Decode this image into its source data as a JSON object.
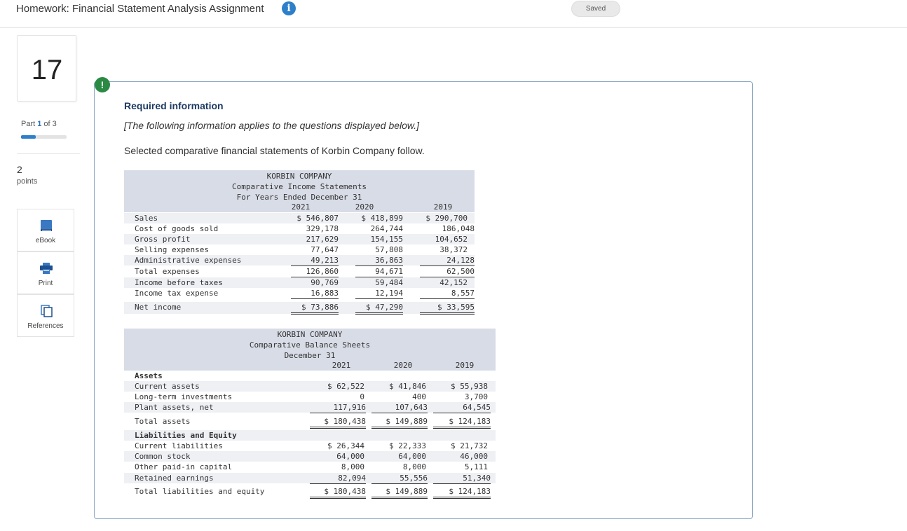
{
  "header": {
    "title": "Homework: Financial Statement Analysis Assignment",
    "info_icon": "i",
    "saved_label": "Saved"
  },
  "sidebar": {
    "question_number": "17",
    "part_label_prefix": "Part ",
    "part_current": "1",
    "part_label_suffix": " of 3",
    "part_progress_fraction": 0.33,
    "points_value": "2",
    "points_label": "points",
    "tools": [
      {
        "label": "eBook",
        "icon": "book-icon"
      },
      {
        "label": "Print",
        "icon": "printer-icon"
      },
      {
        "label": "References",
        "icon": "references-icon"
      }
    ]
  },
  "main": {
    "alert_icon": "!",
    "required_title": "Required information",
    "italic_note": "[The following information applies to the questions displayed below.]",
    "intro": "Selected comparative financial statements of Korbin Company follow."
  },
  "income_statement": {
    "company": "KORBIN COMPANY",
    "title": "Comparative Income Statements",
    "period": "For Years Ended December 31",
    "years": [
      "2021",
      "2020",
      "2019"
    ],
    "rows": [
      {
        "label": "Sales",
        "values": [
          "$ 546,807",
          "$ 418,899",
          "$ 290,700"
        ]
      },
      {
        "label": "Cost of goods sold",
        "values": [
          "329,178",
          "264,744",
          "186,048"
        ]
      },
      {
        "label": "Gross profit",
        "values": [
          "217,629",
          "154,155",
          "104,652"
        ]
      },
      {
        "label": "Selling expenses",
        "values": [
          "77,647",
          "57,808",
          "38,372"
        ]
      },
      {
        "label": "Administrative expenses",
        "values": [
          "49,213",
          "36,863",
          "24,128"
        ]
      },
      {
        "label": "Total expenses",
        "values": [
          "126,860",
          "94,671",
          "62,500"
        ]
      },
      {
        "label": "Income before taxes",
        "values": [
          "90,769",
          "59,484",
          "42,152"
        ]
      },
      {
        "label": "Income tax expense",
        "values": [
          "16,883",
          "12,194",
          "8,557"
        ]
      },
      {
        "label": "Net income",
        "values": [
          "$ 73,886",
          "$ 47,290",
          "$ 33,595"
        ]
      }
    ]
  },
  "balance_sheet": {
    "company": "KORBIN COMPANY",
    "title": "Comparative Balance Sheets",
    "period": "December 31",
    "years": [
      "2021",
      "2020",
      "2019"
    ],
    "assets_heading": "Assets",
    "assets_rows": [
      {
        "label": "Current assets",
        "values": [
          "$ 62,522",
          "$ 41,846",
          "$ 55,938"
        ]
      },
      {
        "label": "Long-term investments",
        "values": [
          "0",
          "400",
          "3,700"
        ]
      },
      {
        "label": "Plant assets, net",
        "values": [
          "117,916",
          "107,643",
          "64,545"
        ]
      }
    ],
    "total_assets": {
      "label": "Total assets",
      "values": [
        "$ 180,438",
        "$ 149,889",
        "$ 124,183"
      ]
    },
    "liabilities_heading": "Liabilities and Equity",
    "liabilities_rows": [
      {
        "label": "Current liabilities",
        "values": [
          "$ 26,344",
          "$ 22,333",
          "$ 21,732"
        ]
      },
      {
        "label": "Common stock",
        "values": [
          "64,000",
          "64,000",
          "46,000"
        ]
      },
      {
        "label": "Other paid-in capital",
        "values": [
          "8,000",
          "8,000",
          "5,111"
        ]
      },
      {
        "label": "Retained earnings",
        "values": [
          "82,094",
          "55,556",
          "51,340"
        ]
      }
    ],
    "total_liabilities": {
      "label": "Total liabilities and equity",
      "values": [
        "$ 180,438",
        "$ 149,889",
        "$ 124,183"
      ]
    }
  }
}
